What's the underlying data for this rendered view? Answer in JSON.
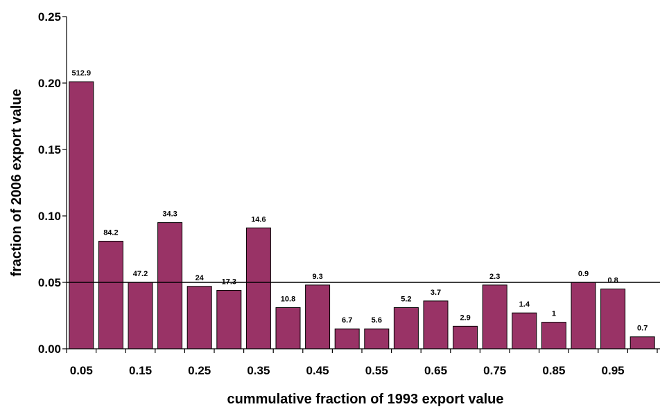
{
  "chart_data": {
    "type": "bar",
    "title": "",
    "xlabel": "cummulative fraction of 1993 export value",
    "ylabel": "fraction of 2006 export value",
    "x": [
      0.05,
      0.1,
      0.15,
      0.2,
      0.25,
      0.3,
      0.35,
      0.4,
      0.45,
      0.5,
      0.55,
      0.6,
      0.65,
      0.7,
      0.75,
      0.8,
      0.85,
      0.9,
      0.95,
      1.0
    ],
    "x_tick_labels": [
      "0.05",
      "0.15",
      "0.25",
      "0.35",
      "0.45",
      "0.55",
      "0.65",
      "0.75",
      "0.85",
      "0.95"
    ],
    "values": [
      0.201,
      0.081,
      0.05,
      0.095,
      0.047,
      0.044,
      0.091,
      0.031,
      0.048,
      0.015,
      0.015,
      0.031,
      0.036,
      0.017,
      0.048,
      0.027,
      0.02,
      0.05,
      0.045,
      0.009
    ],
    "data_labels": [
      "512.9",
      "84.2",
      "47.2",
      "34.3",
      "24",
      "17.3",
      "14.6",
      "10.8",
      "9.3",
      "6.7",
      "5.6",
      "5.2",
      "3.7",
      "2.9",
      "2.3",
      "1.4",
      "1",
      "0.9",
      "0.8",
      "0.7"
    ],
    "ylim": [
      0,
      0.25
    ],
    "y_ticks": [
      "0.00",
      "0.05",
      "0.10",
      "0.15",
      "0.20",
      "0.25"
    ],
    "reference_line": 0.05,
    "bar_color": "#993366",
    "grid": false
  }
}
